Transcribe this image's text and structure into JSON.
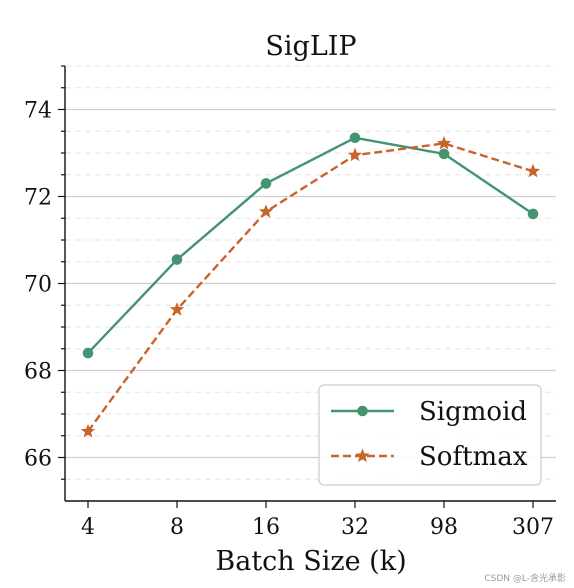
{
  "chart_data": {
    "type": "line",
    "title": "SigLIP",
    "xlabel": "Batch Size (k)",
    "ylabel": "",
    "categories": [
      "4",
      "8",
      "16",
      "32",
      "98",
      "307"
    ],
    "ylim": [
      65,
      75
    ],
    "yticks": [
      66,
      68,
      70,
      72,
      74
    ],
    "grid": "horizontal dashed",
    "legend": "bottom-right",
    "series": [
      {
        "name": "Sigmoid",
        "values": [
          68.4,
          70.55,
          72.3,
          73.35,
          72.98,
          71.6
        ],
        "color": "#43946f",
        "line": "solid",
        "marker": "circle"
      },
      {
        "name": "Softmax",
        "values": [
          66.6,
          69.4,
          71.65,
          72.95,
          73.22,
          72.58
        ],
        "color": "#c8642a",
        "line": "dashed",
        "marker": "star"
      }
    ]
  },
  "watermark": "CSDN @L-含光承影"
}
